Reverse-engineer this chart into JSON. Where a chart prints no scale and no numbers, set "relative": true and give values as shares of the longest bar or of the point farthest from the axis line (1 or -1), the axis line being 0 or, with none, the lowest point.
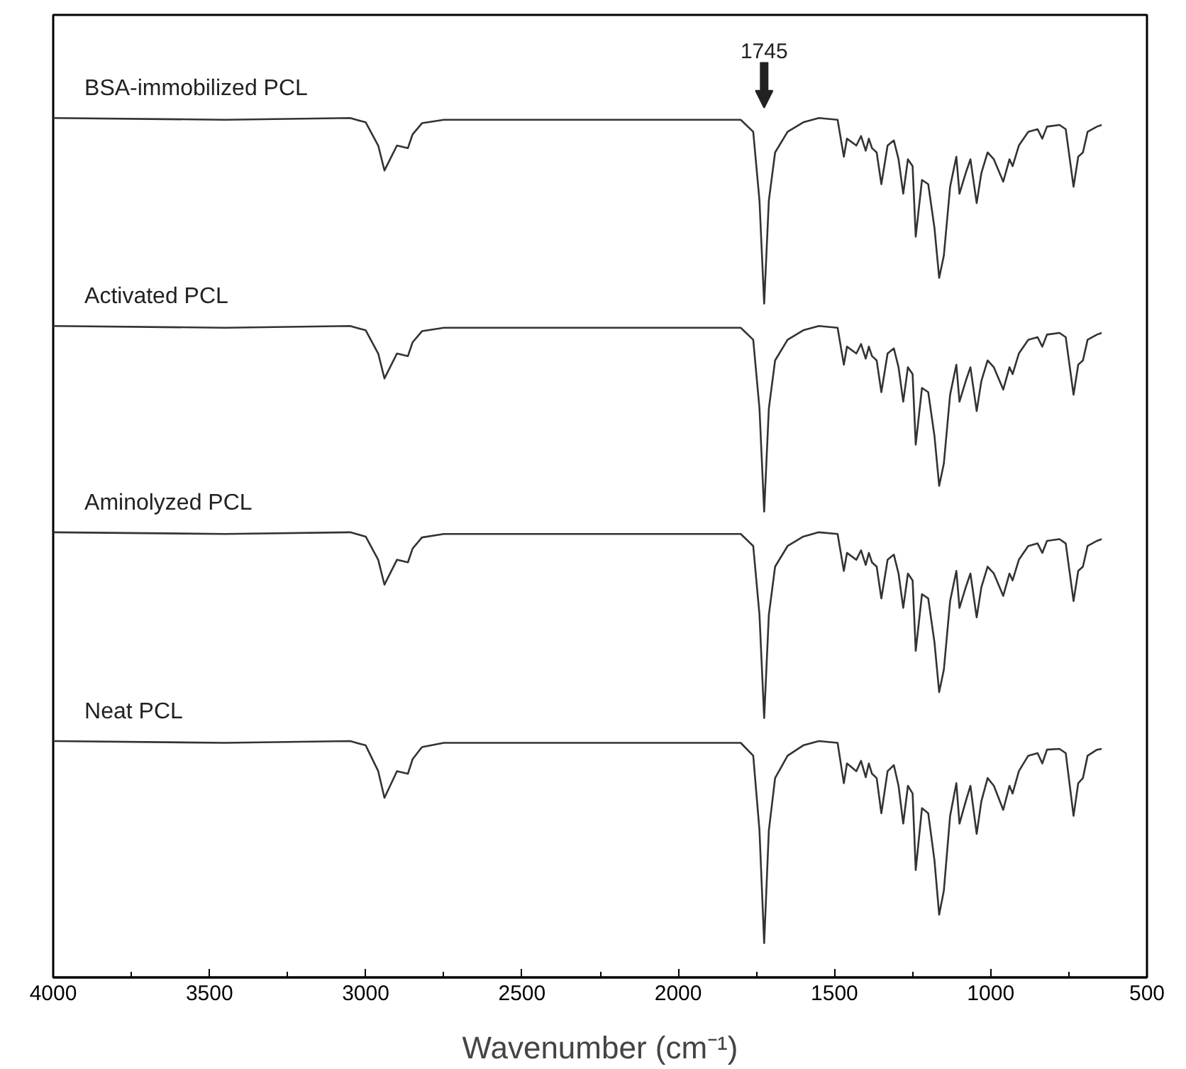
{
  "chart_data": {
    "type": "line",
    "relative": true,
    "xlabel": "Wavenumber (cm⁻¹)",
    "x": [
      4000,
      3450,
      3050,
      3000,
      2960,
      2940,
      2900,
      2865,
      2850,
      2820,
      2750,
      1800,
      1760,
      1740,
      1725,
      1710,
      1690,
      1650,
      1600,
      1550,
      1490,
      1470,
      1460,
      1430,
      1415,
      1400,
      1390,
      1380,
      1365,
      1350,
      1330,
      1310,
      1295,
      1280,
      1265,
      1250,
      1240,
      1220,
      1200,
      1180,
      1165,
      1150,
      1130,
      1110,
      1100,
      1080,
      1065,
      1045,
      1030,
      1010,
      990,
      960,
      940,
      930,
      910,
      880,
      850,
      835,
      820,
      780,
      760,
      735,
      720,
      705,
      690,
      660,
      645
    ],
    "xlim": [
      4000,
      500
    ],
    "xticks": [
      4000,
      3500,
      3000,
      2500,
      2000,
      1500,
      1000,
      500
    ],
    "tick_labels": "x",
    "grid": false,
    "marker": "none",
    "line_style": "solid",
    "annotations": [
      "1745"
    ],
    "series": [
      {
        "name": "BSA-immobilized PCL",
        "color": "#333333",
        "values": [
          1,
          0.998,
          1,
          0.995,
          0.968,
          0.939,
          0.968,
          0.965,
          0.981,
          0.994,
          0.998,
          0.998,
          0.984,
          0.904,
          0.784,
          0.904,
          0.96,
          0.984,
          0.995,
          1,
          0.998,
          0.955,
          0.976,
          0.968,
          0.979,
          0.962,
          0.976,
          0.965,
          0.96,
          0.923,
          0.968,
          0.974,
          0.952,
          0.912,
          0.952,
          0.944,
          0.862,
          0.928,
          0.923,
          0.872,
          0.814,
          0.84,
          0.92,
          0.955,
          0.912,
          0.936,
          0.952,
          0.901,
          0.936,
          0.96,
          0.952,
          0.926,
          0.952,
          0.944,
          0.968,
          0.984,
          0.987,
          0.976,
          0.99,
          0.992,
          0.987,
          0.92,
          0.955,
          0.96,
          0.984,
          0.99,
          0.992
        ]
      },
      {
        "name": "Activated PCL",
        "color": "#333333",
        "values": [
          0.758,
          0.756,
          0.758,
          0.753,
          0.726,
          0.697,
          0.726,
          0.723,
          0.739,
          0.752,
          0.756,
          0.756,
          0.742,
          0.662,
          0.542,
          0.662,
          0.718,
          0.742,
          0.753,
          0.758,
          0.756,
          0.713,
          0.734,
          0.726,
          0.737,
          0.72,
          0.734,
          0.723,
          0.718,
          0.681,
          0.726,
          0.732,
          0.71,
          0.67,
          0.71,
          0.702,
          0.62,
          0.686,
          0.681,
          0.63,
          0.572,
          0.598,
          0.678,
          0.713,
          0.67,
          0.694,
          0.71,
          0.659,
          0.694,
          0.718,
          0.71,
          0.684,
          0.71,
          0.702,
          0.726,
          0.742,
          0.745,
          0.734,
          0.748,
          0.75,
          0.745,
          0.678,
          0.713,
          0.718,
          0.742,
          0.748,
          0.75
        ]
      },
      {
        "name": "Aminolyzed PCL",
        "color": "#333333",
        "values": [
          0.518,
          0.516,
          0.518,
          0.513,
          0.486,
          0.457,
          0.486,
          0.483,
          0.499,
          0.512,
          0.516,
          0.516,
          0.502,
          0.422,
          0.302,
          0.422,
          0.478,
          0.502,
          0.513,
          0.518,
          0.516,
          0.473,
          0.494,
          0.486,
          0.497,
          0.48,
          0.494,
          0.483,
          0.478,
          0.441,
          0.486,
          0.492,
          0.47,
          0.43,
          0.47,
          0.462,
          0.38,
          0.446,
          0.441,
          0.39,
          0.332,
          0.358,
          0.438,
          0.473,
          0.43,
          0.454,
          0.47,
          0.419,
          0.454,
          0.478,
          0.47,
          0.444,
          0.47,
          0.462,
          0.486,
          0.502,
          0.505,
          0.494,
          0.508,
          0.51,
          0.505,
          0.438,
          0.473,
          0.478,
          0.502,
          0.508,
          0.51
        ]
      },
      {
        "name": "Neat PCL",
        "color": "#333333",
        "values": [
          0.275,
          0.273,
          0.275,
          0.27,
          0.24,
          0.209,
          0.24,
          0.237,
          0.254,
          0.268,
          0.273,
          0.273,
          0.258,
          0.171,
          0.04,
          0.171,
          0.232,
          0.258,
          0.27,
          0.275,
          0.273,
          0.226,
          0.249,
          0.24,
          0.252,
          0.233,
          0.249,
          0.237,
          0.232,
          0.191,
          0.24,
          0.247,
          0.223,
          0.179,
          0.223,
          0.214,
          0.125,
          0.197,
          0.191,
          0.136,
          0.073,
          0.101,
          0.188,
          0.226,
          0.179,
          0.205,
          0.223,
          0.167,
          0.205,
          0.232,
          0.223,
          0.195,
          0.223,
          0.214,
          0.24,
          0.258,
          0.261,
          0.249,
          0.265,
          0.266,
          0.261,
          0.188,
          0.226,
          0.232,
          0.258,
          0.265,
          0.266
        ]
      }
    ]
  }
}
